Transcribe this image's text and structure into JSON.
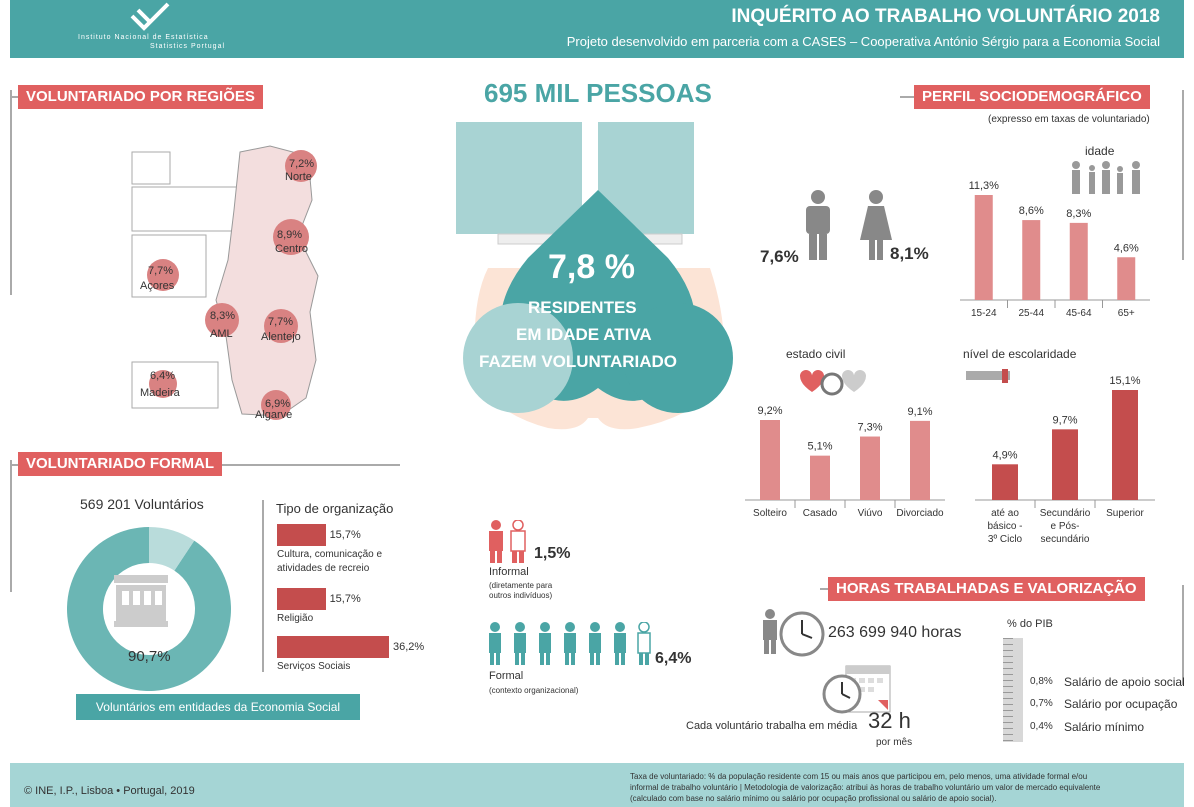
{
  "header": {
    "title": "INQUÉRITO AO TRABALHO VOLUNTÁRIO 2018",
    "subtitle": "Projeto desenvolvido em parceria com a CASES – Cooperativa António Sérgio para a Economia Social",
    "logo_line1": "Instituto Nacional de Estatística",
    "logo_line2": "Statistics Portugal"
  },
  "regions": {
    "title": "VOLUNTARIADO POR REGIÕES",
    "items": [
      {
        "pct": "7,2%",
        "name": "Norte"
      },
      {
        "pct": "8,9%",
        "name": "Centro"
      },
      {
        "pct": "7,7%",
        "name": "Açores"
      },
      {
        "pct": "8,3%",
        "name": "AML"
      },
      {
        "pct": "7,7%",
        "name": "Alentejo"
      },
      {
        "pct": "6,4%",
        "name": "Madeira"
      },
      {
        "pct": "6,9%",
        "name": "Algarve"
      }
    ]
  },
  "center": {
    "headline": "695 MIL PESSOAS",
    "pct": "7,8 %",
    "line1": "RESIDENTES",
    "line2": "EM IDADE ATIVA",
    "line3": "FAZEM VOLUNTARIADO"
  },
  "formal": {
    "title": "VOLUNTARIADO FORMAL",
    "volunteers": "569 201 Voluntários",
    "donut_pct": "90,7%",
    "donut_value": 90.7,
    "legend": "Voluntários em entidades da Economia Social",
    "org_title": "Tipo de organização",
    "orgs": [
      {
        "pct": "15,7%",
        "value": 15.7,
        "label": "Cultura, comunicação e atividades de recreio"
      },
      {
        "pct": "15,7%",
        "value": 15.7,
        "label": "Religião"
      },
      {
        "pct": "36,2%",
        "value": 36.2,
        "label": "Serviços Sociais"
      }
    ]
  },
  "informal": {
    "pct": "1,5%",
    "label": "Informal",
    "desc": "(diretamente para outros indivíduos)"
  },
  "formal2": {
    "pct": "6,4%",
    "label": "Formal",
    "desc": "(contexto organizacional)"
  },
  "perfil": {
    "title": "PERFIL SOCIODEMOGRÁFICO",
    "subtitle": "(expresso em taxas de voluntariado)",
    "male": "7,6%",
    "female": "8,1%",
    "age_title": "idade",
    "civil_title": "estado civil",
    "edu_title": "nível de escolaridade"
  },
  "chart_data": [
    {
      "type": "bar",
      "title": "idade",
      "categories": [
        "15-24",
        "25-44",
        "45-64",
        "65+"
      ],
      "values": [
        11.3,
        8.6,
        8.3,
        4.6
      ],
      "labels": [
        "11,3%",
        "8,6%",
        "8,3%",
        "4,6%"
      ]
    },
    {
      "type": "bar",
      "title": "estado civil",
      "categories": [
        "Solteiro",
        "Casado",
        "Viúvo",
        "Divorciado"
      ],
      "values": [
        9.2,
        5.1,
        7.3,
        9.1
      ],
      "labels": [
        "9,2%",
        "5,1%",
        "7,3%",
        "9,1%"
      ]
    },
    {
      "type": "bar",
      "title": "nível de escolaridade",
      "categories": [
        "até ao básico - 3º Ciclo",
        "Secundário e Pós-secundário",
        "Superior"
      ],
      "values": [
        4.9,
        9.7,
        15.1
      ],
      "labels": [
        "4,9%",
        "9,7%",
        "15,1%"
      ]
    }
  ],
  "horas": {
    "title": "HORAS TRABALHADAS E VALORIZAÇÃO",
    "hours": "263 699 940 horas",
    "avg_label": "Cada voluntário trabalha em média",
    "avg_value": "32 h",
    "avg_unit": "por mês",
    "pib_title": "% do PIB",
    "pib": [
      {
        "pct": "0,8%",
        "label": "Salário de apoio social"
      },
      {
        "pct": "0,7%",
        "label": "Salário por ocupação"
      },
      {
        "pct": "0,4%",
        "label": "Salário mínimo"
      }
    ]
  },
  "footer": {
    "left": "© INE, I.P., Lisboa • Portugal, 2019",
    "note1": "Taxa de voluntariado: % da população residente com 15 ou mais anos que participou em, pelo menos, uma atividade formal e/ou",
    "note2": "informal de trabalho voluntário | Metodologia de valorização: atribui às horas de trabalho voluntário um valor de mercado equivalente",
    "note3": "(calculado com base no salário mínimo ou salário por ocupação profissional ou salário de apoio social)."
  },
  "colors": {
    "teal": "#4aa5a5",
    "red": "#e06060",
    "bar_light": "#e08c8c",
    "bar_dark": "#c44d4d"
  }
}
